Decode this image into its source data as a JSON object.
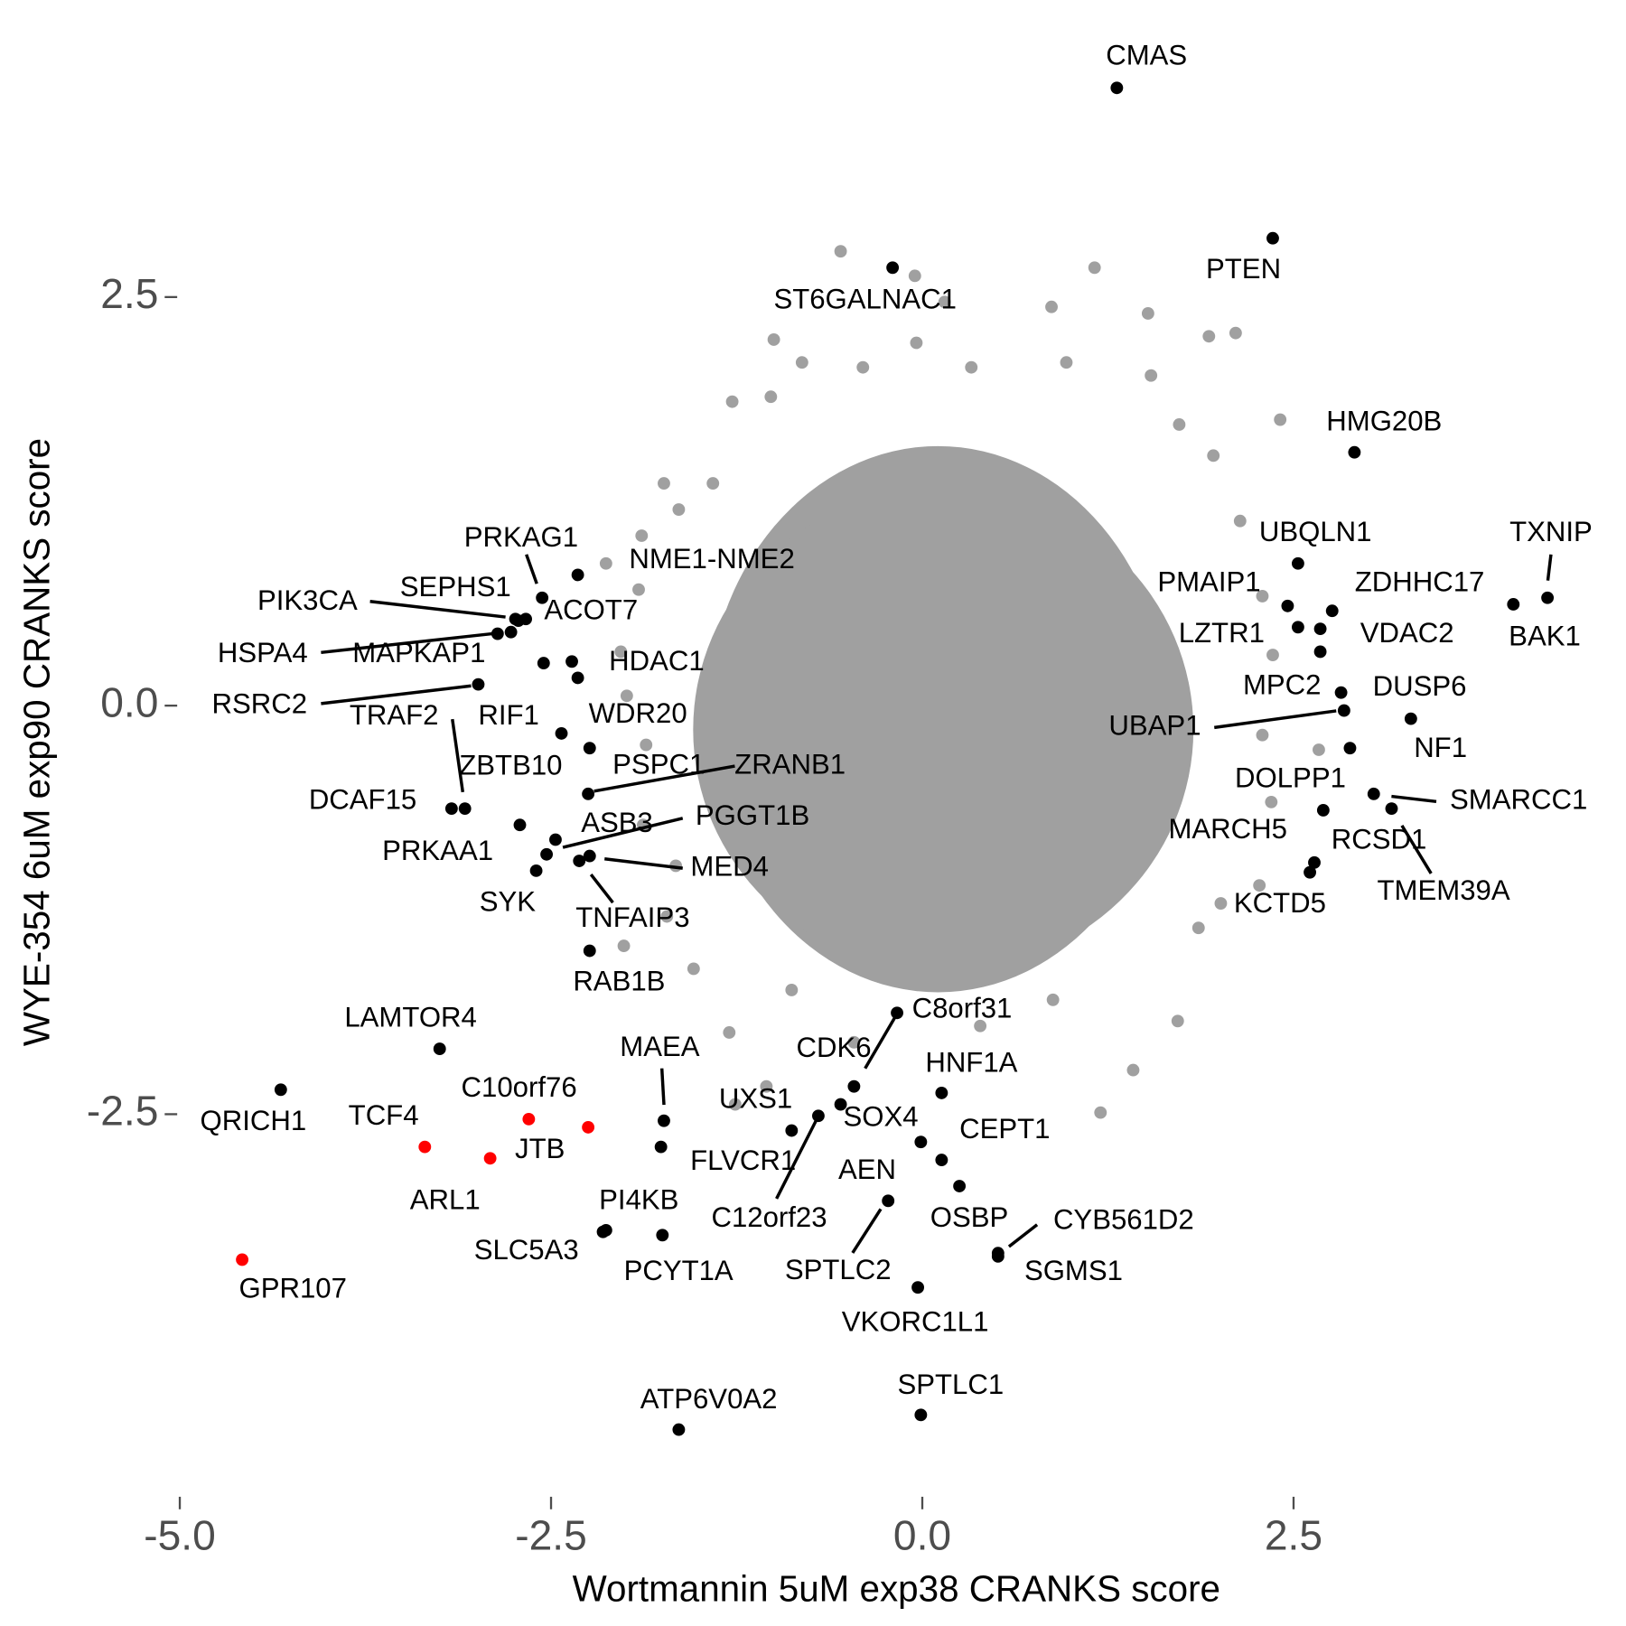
{
  "chart_data": {
    "type": "scatter",
    "x_label": "Wortmannin 5uM exp38 CRANKS score",
    "y_label": "WYE-354 6uM exp90 CRANKS score",
    "xlim": [
      -5,
      4.5
    ],
    "ylim": [
      -4.8,
      3.9
    ],
    "xticks": [
      {
        "value": -5,
        "label": "-5.0"
      },
      -2.5,
      {
        "value": 0,
        "label": "0.0"
      },
      2.5
    ],
    "yticks": [
      -2.5,
      {
        "value": 0,
        "label": "0.0"
      },
      2.5
    ],
    "series": [
      {
        "color": "#a0a0a0",
        "x": [
          -0.55,
          1.16,
          -0.05,
          0.15,
          0.87,
          1.52,
          -0.04,
          -1.0,
          1.93,
          2.11,
          -0.81,
          -0.4,
          0.33,
          0.97,
          -1.02,
          -1.28,
          1.54,
          2.41,
          1.73,
          1.96,
          -1.74,
          -1.41,
          -1.64,
          -1.89,
          -2.13,
          -1.91,
          -2.03,
          -1.99,
          -1.86,
          -1.88,
          -1.66,
          -2.01,
          -1.72,
          -1.54,
          -1.3,
          -1.26,
          -1.05,
          -0.46,
          0.39,
          1.42,
          1.2,
          1.72,
          1.86,
          2.01,
          2.27,
          2.35,
          2.67,
          2.29,
          2.36,
          2.29,
          2.14,
          0.88,
          -0.88
        ],
        "y": [
          2.78,
          2.68,
          2.63,
          2.47,
          2.44,
          2.4,
          2.22,
          2.24,
          2.26,
          2.28,
          2.1,
          2.07,
          2.07,
          2.1,
          1.89,
          1.86,
          2.02,
          1.75,
          1.72,
          1.53,
          1.36,
          1.36,
          1.2,
          1.04,
          0.87,
          0.71,
          0.33,
          0.06,
          -0.24,
          -0.73,
          -0.98,
          -1.47,
          -1.29,
          -1.61,
          -2.0,
          -2.44,
          -2.33,
          -2.06,
          -1.96,
          -2.23,
          -2.49,
          -1.93,
          -1.36,
          -1.21,
          -1.1,
          -0.59,
          -0.27,
          -0.18,
          0.31,
          0.67,
          1.13,
          -1.8,
          -1.74
        ]
      },
      {
        "color": "#000000",
        "labels": [
          "CMAS",
          "PTEN",
          "ST6GALNAC1",
          "HMG20B",
          "UBQLN1",
          "TXNIP",
          "BAK1",
          "ZDHHC17",
          "PMAIP1",
          "VDAC2",
          "LZTR1",
          "MPC2",
          "DUSP6",
          "UBAP1",
          "NF1",
          "DOLPP1",
          "SMARCC1",
          "MARCH5",
          "RCSD1",
          "TMEM39A",
          "KCTD5",
          "PRKAG1",
          "NME1-NME2",
          "SEPHS1",
          "ACOT7",
          "PIK3CA",
          "MAPKAP1",
          "HSPA4",
          "HDAC1",
          "RSRC2",
          "TRAF2",
          "RIF1",
          "WDR20",
          "ZBTB10",
          "DCAF15",
          "PSPC1",
          "ZRANB1",
          "PGGT1B",
          "ASB3",
          "PRKAA1",
          "MED4",
          "SYK",
          "TNFAIP3",
          "RAB1B",
          "LAMTOR4",
          "QRICH1",
          "MAEA",
          "FLVCR1",
          "C8orf31",
          "CDK6",
          "HNF1A",
          "UXS1",
          "SOX4",
          "C12orf23",
          "CEPT1",
          "AEN",
          "OSBP",
          "SPTLC2",
          "CYB561D2",
          "SGMS1",
          "VKORC1L1",
          "SPTLC1",
          "ATP6V0A2",
          "PI4KB",
          "SLC5A3",
          "PCYT1A"
        ],
        "x": [
          1.31,
          2.36,
          -0.2,
          2.91,
          2.53,
          4.21,
          3.98,
          2.76,
          2.46,
          2.68,
          2.53,
          2.68,
          2.82,
          2.84,
          3.29,
          2.88,
          3.04,
          2.7,
          2.64,
          3.16,
          2.61,
          -2.56,
          -2.32,
          -2.72,
          -2.67,
          -2.74,
          -2.77,
          -2.86,
          -2.36,
          -2.99,
          -3.08,
          -2.55,
          -2.32,
          -2.43,
          -3.17,
          -2.24,
          -2.25,
          -2.47,
          -2.53,
          -2.71,
          -2.24,
          -2.6,
          -2.31,
          -2.24,
          -3.25,
          -4.32,
          -1.74,
          -1.76,
          -0.46,
          -0.17,
          0.13,
          -0.88,
          -0.55,
          -0.7,
          -0.01,
          0.13,
          0.25,
          -0.23,
          0.51,
          0.51,
          -0.03,
          -0.01,
          -1.64,
          -2.13,
          -2.15,
          -1.75
        ],
        "y": [
          3.78,
          2.86,
          2.68,
          1.55,
          0.87,
          0.66,
          0.62,
          0.58,
          0.61,
          0.47,
          0.48,
          0.33,
          0.08,
          -0.03,
          -0.08,
          -0.26,
          -0.54,
          -0.64,
          -0.96,
          -0.63,
          -1.02,
          0.66,
          0.8,
          0.52,
          0.53,
          0.53,
          0.45,
          0.44,
          0.27,
          0.13,
          -0.63,
          0.26,
          0.17,
          -0.17,
          -0.63,
          -0.26,
          -0.54,
          -0.82,
          -0.91,
          -0.73,
          -0.92,
          -1.01,
          -0.95,
          -1.5,
          -2.1,
          -2.35,
          -2.54,
          -2.7,
          -2.33,
          -1.88,
          -2.37,
          -2.6,
          -2.44,
          -2.51,
          -2.67,
          -2.78,
          -2.94,
          -3.03,
          -3.35,
          -3.37,
          -3.56,
          -4.34,
          -4.43,
          -3.21,
          -3.22,
          -3.24
        ]
      },
      {
        "color": "#ff0000",
        "labels": [
          "TCF4",
          "ARL1",
          "JTB",
          "C10orf76",
          "GPR107"
        ],
        "x": [
          -3.35,
          -2.91,
          -2.65,
          -2.25,
          -4.58
        ],
        "y": [
          -2.7,
          -2.77,
          -2.53,
          -2.58,
          -3.39
        ]
      }
    ]
  }
}
